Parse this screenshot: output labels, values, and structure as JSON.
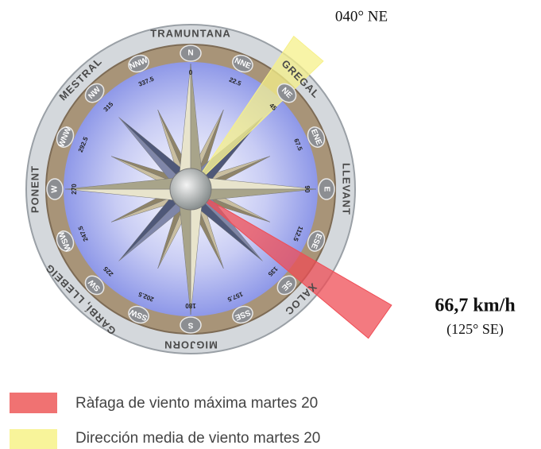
{
  "winds": [
    "TRAMUNTANA",
    "GREGAL",
    "LLEVANT",
    "XALOC",
    "MIGJORN",
    "GARBÍ, LLEBEIG",
    "PONENT",
    "MESTRAL"
  ],
  "points": [
    "N",
    "NNE",
    "NE",
    "ENE",
    "E",
    "ESE",
    "SE",
    "SSE",
    "S",
    "SSW",
    "SW",
    "WSW",
    "W",
    "WNW",
    "NW",
    "NNW"
  ],
  "degrees": [
    0,
    22.5,
    45,
    67.5,
    90,
    112.5,
    135,
    157.5,
    180,
    202.5,
    225,
    247.5,
    270,
    292.5,
    315,
    337.5
  ],
  "mean_direction": "040° NE",
  "max_gust": {
    "speed": "66,7 km/h",
    "direction": "(125° SE)"
  },
  "legend": [
    "Ràfaga de viento máxima martes 20",
    "Dirección media de viento martes 20"
  ]
}
